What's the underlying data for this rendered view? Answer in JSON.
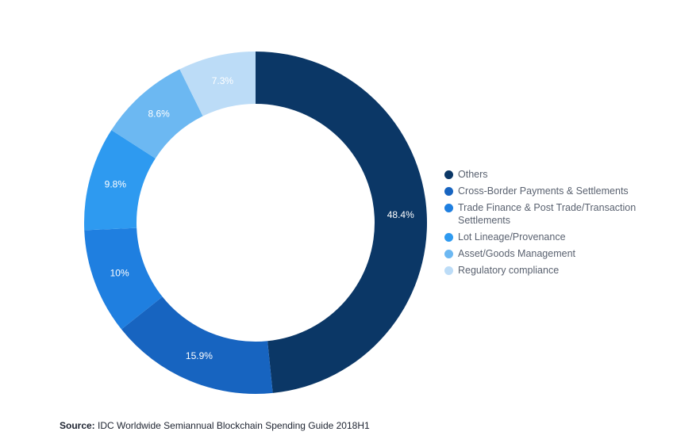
{
  "chart_data": {
    "type": "pie",
    "variant": "donut",
    "title": "",
    "categories": [
      "Others",
      "Cross-Border Payments & Settlements",
      "Trade Finance & Post Trade/Transaction Settlements",
      "Lot Lineage/Provenance",
      "Asset/Goods Management",
      "Regulatory compliance"
    ],
    "values": [
      48.4,
      15.9,
      10,
      9.8,
      8.6,
      7.3
    ],
    "value_labels": [
      "48.4%",
      "15.9%",
      "10%",
      "9.8%",
      "8.6%",
      "7.3%"
    ],
    "colors": [
      "#0b3766",
      "#1764c0",
      "#1f7fe0",
      "#2e9af0",
      "#6cb8f2",
      "#bcdcf7"
    ],
    "legend_position": "right",
    "start_angle": "top",
    "direction": "clockwise"
  },
  "source": {
    "label": "Source:",
    "text": " IDC Worldwide Semiannual Blockchain Spending Guide 2018H1"
  }
}
